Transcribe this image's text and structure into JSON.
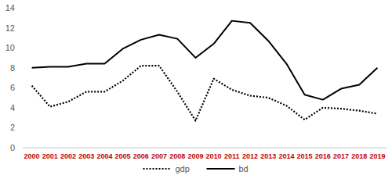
{
  "chart_data": {
    "type": "line",
    "categories": [
      "2000",
      "2001",
      "2002",
      "2003",
      "2004",
      "2005",
      "2006",
      "2007",
      "2008",
      "2009",
      "2010",
      "2011",
      "2012",
      "2013",
      "2014",
      "2015",
      "2016",
      "2017",
      "2018",
      "2019"
    ],
    "series": [
      {
        "name": "gdp",
        "color": "#000000",
        "line_style": "dotted",
        "values": [
          6.2,
          4.1,
          4.6,
          5.6,
          5.6,
          6.7,
          8.2,
          8.2,
          5.6,
          2.7,
          6.9,
          5.8,
          5.2,
          5.0,
          4.2,
          2.8,
          4.0,
          3.9,
          3.7,
          3.4
        ]
      },
      {
        "name": "bd",
        "color": "#000000",
        "line_style": "solid",
        "values": [
          8.0,
          8.1,
          8.1,
          8.4,
          8.4,
          9.9,
          10.8,
          11.3,
          10.9,
          9.0,
          10.4,
          12.7,
          12.5,
          10.7,
          8.4,
          5.3,
          4.8,
          5.9,
          6.3,
          8.0
        ]
      }
    ],
    "ylim": [
      0,
      14
    ],
    "yticks": [
      0,
      2,
      4,
      6,
      8,
      10,
      12,
      14
    ],
    "grid": false,
    "legend": "bottom"
  }
}
